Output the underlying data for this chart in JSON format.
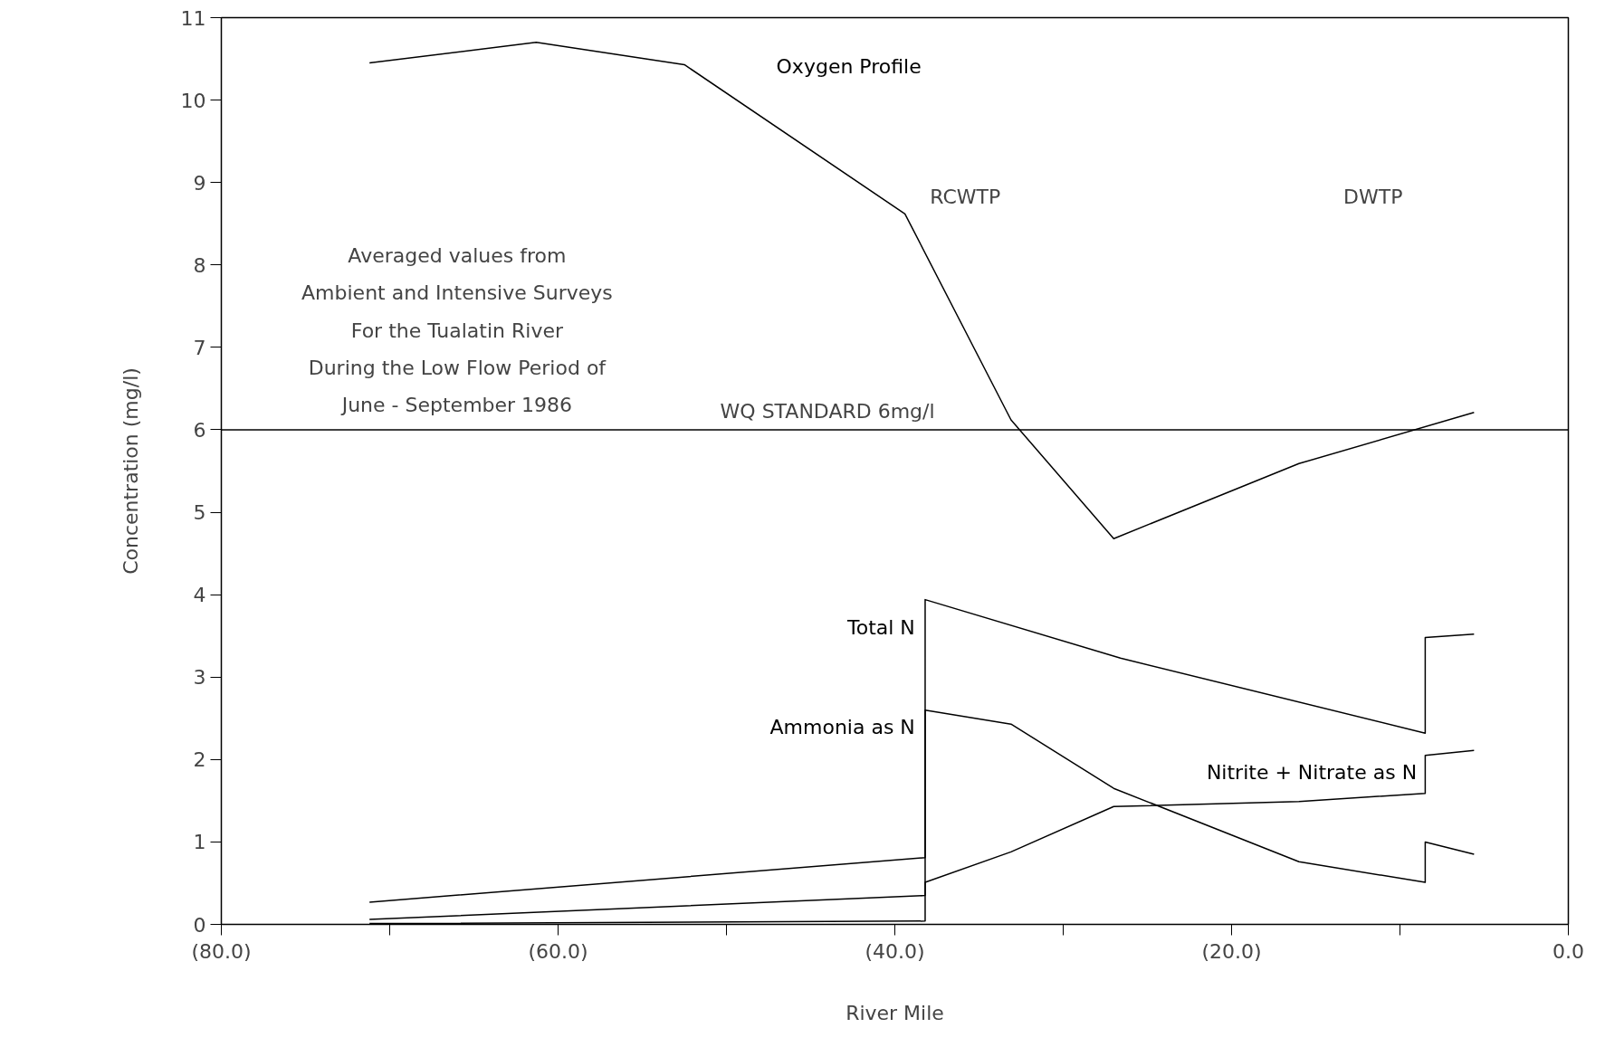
{
  "chart_data": {
    "type": "line",
    "xlabel": "River Mile",
    "ylabel": "Concentration (mg/l)",
    "xlim": [
      -80,
      0
    ],
    "ylim": [
      0,
      11
    ],
    "xticks": [
      {
        "value": -80,
        "label": "(80.0)"
      },
      {
        "value": -70,
        "label": null
      },
      {
        "value": -60,
        "label": "(60.0)"
      },
      {
        "value": -50,
        "label": null
      },
      {
        "value": -40,
        "label": "(40.0)"
      },
      {
        "value": -30,
        "label": null
      },
      {
        "value": -20,
        "label": "(20.0)"
      },
      {
        "value": -10,
        "label": null
      },
      {
        "value": 0,
        "label": "0.0"
      }
    ],
    "yticks": [
      0,
      1,
      2,
      3,
      4,
      5,
      6,
      7,
      8,
      9,
      10,
      11
    ],
    "grid": false,
    "series": [
      {
        "name": "Oxygen Profile",
        "color": "#000000",
        "x": [
          -71.2,
          -61.3,
          -52.5,
          -39.4,
          -33.1,
          -27.0,
          -16.0,
          -5.6
        ],
        "values": [
          10.45,
          10.7,
          10.43,
          8.62,
          6.12,
          4.68,
          5.59,
          6.21
        ]
      },
      {
        "name": "Total N",
        "color": "#000000",
        "x": [
          -71.2,
          -38.2,
          -38.2,
          -26.6,
          -8.5,
          -8.5,
          -5.6
        ],
        "values": [
          0.27,
          0.81,
          3.94,
          3.23,
          2.32,
          3.48,
          3.52
        ]
      },
      {
        "name": "Ammonia as N",
        "color": "#000000",
        "x": [
          -71.2,
          -38.2,
          -38.2,
          -33.1,
          -27.0,
          -16.0,
          -8.5,
          -8.5,
          -5.6
        ],
        "values": [
          0.06,
          0.35,
          2.6,
          2.43,
          1.65,
          0.76,
          0.51,
          1.0,
          0.85
        ]
      },
      {
        "name": "Nitrite + Nitrate as N",
        "color": "#000000",
        "x": [
          -71.2,
          -38.2,
          -38.2,
          -33.1,
          -27.0,
          -16.0,
          -8.5,
          -8.5,
          -5.6
        ],
        "values": [
          0.01,
          0.04,
          0.51,
          0.88,
          1.43,
          1.49,
          1.59,
          2.05,
          2.11
        ]
      }
    ],
    "ref_lines": [
      {
        "axis": "y",
        "value": 6,
        "label": "WQ STANDARD 6mg/l",
        "color": "#000000"
      }
    ],
    "annotations": [
      "RCWTP",
      "DWTP",
      "Averaged values from\nAmbient and Intensive Surveys\nFor the Tualatin River\nDuring the Low Flow Period of\nJune - September 1986"
    ]
  }
}
